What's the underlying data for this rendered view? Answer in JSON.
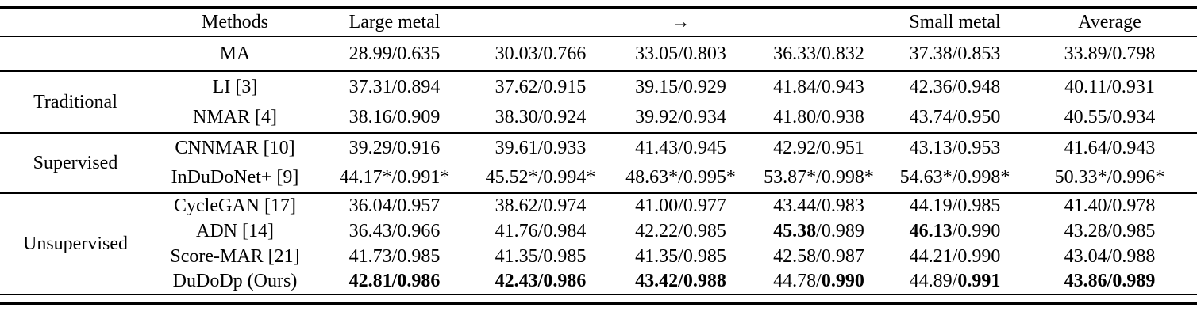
{
  "page": {
    "background": "#ffffff",
    "text_color": "#000000",
    "rule_color": "#000000"
  },
  "table": {
    "header": {
      "group_label": "",
      "methods_label": "Methods",
      "cols": [
        "Large metal",
        "",
        "→",
        "",
        "Small metal",
        "Average"
      ]
    },
    "sections": [
      {
        "group": "",
        "rows": [
          {
            "method": "MA",
            "cells": [
              [
                {
                  "t": "28.99/0.635"
                }
              ],
              [
                {
                  "t": "30.03/0.766"
                }
              ],
              [
                {
                  "t": "33.05/0.803"
                }
              ],
              [
                {
                  "t": "36.33/0.832"
                }
              ],
              [
                {
                  "t": "37.38/0.853"
                }
              ],
              [
                {
                  "t": "33.89/0.798"
                }
              ]
            ]
          }
        ]
      },
      {
        "group": "Traditional",
        "rows": [
          {
            "method": "LI [3]",
            "cells": [
              [
                {
                  "t": "37.31/0.894"
                }
              ],
              [
                {
                  "t": "37.62/0.915"
                }
              ],
              [
                {
                  "t": "39.15/0.929"
                }
              ],
              [
                {
                  "t": "41.84/0.943"
                }
              ],
              [
                {
                  "t": "42.36/0.948"
                }
              ],
              [
                {
                  "t": "40.11/0.931"
                }
              ]
            ]
          },
          {
            "method": "NMAR [4]",
            "cells": [
              [
                {
                  "t": "38.16/0.909"
                }
              ],
              [
                {
                  "t": "38.30/0.924"
                }
              ],
              [
                {
                  "t": "39.92/0.934"
                }
              ],
              [
                {
                  "t": "41.80/0.938"
                }
              ],
              [
                {
                  "t": "43.74/0.950"
                }
              ],
              [
                {
                  "t": "40.55/0.934"
                }
              ]
            ]
          }
        ]
      },
      {
        "group": "Supervised",
        "rows": [
          {
            "method": "CNNMAR [10]",
            "cells": [
              [
                {
                  "t": "39.29/0.916"
                }
              ],
              [
                {
                  "t": "39.61/0.933"
                }
              ],
              [
                {
                  "t": "41.43/0.945"
                }
              ],
              [
                {
                  "t": "42.92/0.951"
                }
              ],
              [
                {
                  "t": "43.13/0.953"
                }
              ],
              [
                {
                  "t": "41.64/0.943"
                }
              ]
            ]
          },
          {
            "method": "InDuDoNet+ [9]",
            "cells": [
              [
                {
                  "t": "44.17*/0.991*"
                }
              ],
              [
                {
                  "t": "45.52*/0.994*"
                }
              ],
              [
                {
                  "t": "48.63*/0.995*"
                }
              ],
              [
                {
                  "t": "53.87*/0.998*"
                }
              ],
              [
                {
                  "t": "54.63*/0.998*"
                }
              ],
              [
                {
                  "t": "50.33*/0.996*"
                }
              ]
            ]
          }
        ]
      },
      {
        "group": "Unsupervised",
        "rows": [
          {
            "method": "CycleGAN [17]",
            "cells": [
              [
                {
                  "t": "36.04/0.957"
                }
              ],
              [
                {
                  "t": "38.62/0.974"
                }
              ],
              [
                {
                  "t": "41.00/0.977"
                }
              ],
              [
                {
                  "t": "43.44/0.983"
                }
              ],
              [
                {
                  "t": "44.19/0.985"
                }
              ],
              [
                {
                  "t": "41.40/0.978"
                }
              ]
            ]
          },
          {
            "method": "ADN [14]",
            "cells": [
              [
                {
                  "t": "36.43/0.966"
                }
              ],
              [
                {
                  "t": "41.76/0.984"
                }
              ],
              [
                {
                  "t": "42.22/0.985"
                }
              ],
              [
                {
                  "t": "45.38",
                  "b": true
                },
                {
                  "t": "/0.989"
                }
              ],
              [
                {
                  "t": "46.13",
                  "b": true
                },
                {
                  "t": "/0.990"
                }
              ],
              [
                {
                  "t": "43.28/0.985"
                }
              ]
            ]
          },
          {
            "method": "Score-MAR [21]",
            "cells": [
              [
                {
                  "t": "41.73/0.985"
                }
              ],
              [
                {
                  "t": "41.35/0.985"
                }
              ],
              [
                {
                  "t": "41.35/0.985"
                }
              ],
              [
                {
                  "t": "42.58/0.987"
                }
              ],
              [
                {
                  "t": "44.21/0.990"
                }
              ],
              [
                {
                  "t": "43.04/0.988"
                }
              ]
            ]
          },
          {
            "method": "DuDoDp (Ours)",
            "cells": [
              [
                {
                  "t": "42.81/0.986",
                  "b": true
                }
              ],
              [
                {
                  "t": "42.43/0.986",
                  "b": true
                }
              ],
              [
                {
                  "t": "43.42/0.988",
                  "b": true
                }
              ],
              [
                {
                  "t": "44.78/"
                },
                {
                  "t": "0.990",
                  "b": true
                }
              ],
              [
                {
                  "t": "44.89/"
                },
                {
                  "t": "0.991",
                  "b": true
                }
              ],
              [
                {
                  "t": "43.86/0.989",
                  "b": true
                }
              ]
            ]
          }
        ]
      }
    ]
  }
}
